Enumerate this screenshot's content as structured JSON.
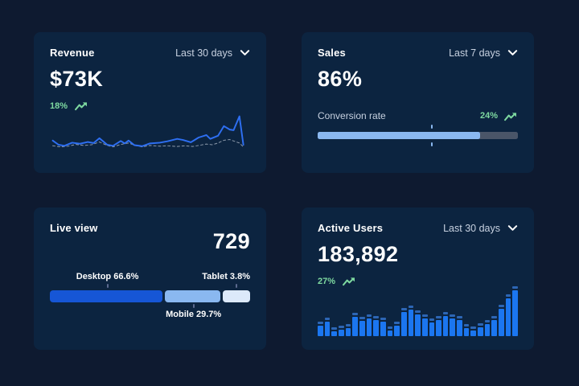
{
  "theme": {
    "page_bg": "#0e1a30",
    "card_bg": "#0c2440",
    "accent_green": "#7ed9a0",
    "line_blue": "#2e6ff2",
    "line_dash_gray": "#8e9bac",
    "bar_blue": "#1b76f0",
    "bar_cap_blue": "#2d66b5",
    "progress_fill": "#8ab8f0",
    "progress_track": "#4a5568",
    "desktop_blue": "#1656d6",
    "mobile_blue": "#8ab8f0",
    "tablet_blue": "#dce9fa",
    "tick_color": "#5c6a8f"
  },
  "cards": {
    "revenue": {
      "title": "Revenue",
      "range": "Last 30 days",
      "value": "$73K",
      "delta": "18%",
      "line_points": [
        [
          0,
          81
        ],
        [
          3,
          93
        ],
        [
          6,
          96
        ],
        [
          10,
          87
        ],
        [
          14,
          90
        ],
        [
          18,
          85
        ],
        [
          21,
          88
        ],
        [
          24,
          74
        ],
        [
          28,
          93
        ],
        [
          31,
          96
        ],
        [
          35,
          82
        ],
        [
          37,
          89
        ],
        [
          39,
          81
        ],
        [
          42,
          94
        ],
        [
          46,
          97
        ],
        [
          50,
          89
        ],
        [
          55,
          87
        ],
        [
          59,
          83
        ],
        [
          64,
          76
        ],
        [
          67,
          79
        ],
        [
          71,
          86
        ],
        [
          75,
          72
        ],
        [
          79,
          65
        ],
        [
          81,
          76
        ],
        [
          85,
          67
        ],
        [
          88,
          39
        ],
        [
          91,
          49
        ],
        [
          93,
          51
        ],
        [
          96,
          11
        ],
        [
          98,
          93
        ]
      ],
      "dash_points": [
        [
          0,
          96
        ],
        [
          4,
          99
        ],
        [
          8,
          97
        ],
        [
          12,
          92
        ],
        [
          16,
          95
        ],
        [
          20,
          93
        ],
        [
          24,
          85
        ],
        [
          28,
          95
        ],
        [
          31,
          99
        ],
        [
          35,
          92
        ],
        [
          39,
          88
        ],
        [
          43,
          96
        ],
        [
          46,
          99
        ],
        [
          50,
          95
        ],
        [
          55,
          97
        ],
        [
          59,
          96
        ],
        [
          64,
          98
        ],
        [
          68,
          96
        ],
        [
          72,
          98
        ],
        [
          75,
          95
        ],
        [
          79,
          91
        ],
        [
          82,
          93
        ],
        [
          85,
          88
        ],
        [
          88,
          80
        ],
        [
          91,
          78
        ],
        [
          93,
          82
        ],
        [
          96,
          88
        ],
        [
          98,
          99
        ]
      ]
    },
    "sales": {
      "title": "Sales",
      "range": "Last 7 days",
      "value": "86%",
      "metric_label": "Conversion rate",
      "delta": "24%",
      "progress_pct": 81,
      "marker_pct": 57
    },
    "live_view": {
      "title": "Live view",
      "value": "729",
      "segments": [
        {
          "name": "Desktop",
          "label": "Desktop 66.6%",
          "share_pct": 66.6,
          "width_pct": 57.5
        },
        {
          "name": "Mobile",
          "label": "Mobile 29.7%",
          "share_pct": 29.7,
          "width_pct": 28.5
        },
        {
          "name": "Tablet",
          "label": "Tablet 3.8%",
          "share_pct": 3.8,
          "width_pct": 14
        }
      ]
    },
    "active_users": {
      "title": "Active Users",
      "range": "Last 30 days",
      "value": "183,892",
      "delta": "27%",
      "bars": [
        29,
        37,
        17,
        21,
        24,
        46,
        38,
        43,
        40,
        37,
        19,
        29,
        57,
        62,
        52,
        44,
        35,
        40,
        48,
        44,
        40,
        24,
        19,
        25,
        32,
        40,
        63,
        84,
        100
      ]
    }
  },
  "chart_data": [
    {
      "type": "line",
      "title": "Revenue",
      "range": "Last 30 days",
      "kpi": "$73K",
      "change": "+18%",
      "legend_position": "none",
      "series": [
        {
          "name": "current",
          "values_relative": [
            19,
            7,
            4,
            13,
            10,
            15,
            12,
            26,
            7,
            4,
            18,
            11,
            19,
            6,
            3,
            11,
            13,
            17,
            24,
            21,
            14,
            28,
            35,
            24,
            33,
            61,
            51,
            49,
            89,
            7
          ]
        },
        {
          "name": "previous (dashed)",
          "values_relative": [
            4,
            1,
            3,
            8,
            5,
            7,
            15,
            5,
            1,
            8,
            12,
            4,
            1,
            5,
            3,
            4,
            2,
            4,
            2,
            5,
            9,
            7,
            12,
            20,
            22,
            18,
            12,
            1
          ]
        }
      ]
    },
    {
      "type": "bar",
      "title": "Sales conversion rate",
      "range": "Last 7 days",
      "kpi": "86%",
      "change": "+24%",
      "categories": [
        "Conversion rate"
      ],
      "values": [
        86
      ],
      "progress_fill_pct": 81,
      "marker_pct": 57
    },
    {
      "type": "bar",
      "title": "Live view device share",
      "kpi": "729",
      "categories": [
        "Desktop",
        "Mobile",
        "Tablet"
      ],
      "values": [
        66.6,
        29.7,
        3.8
      ]
    },
    {
      "type": "bar",
      "title": "Active Users",
      "range": "Last 30 days",
      "kpi": "183,892",
      "change": "+27%",
      "categories": [],
      "values_relative": [
        29,
        37,
        17,
        21,
        24,
        46,
        38,
        43,
        40,
        37,
        19,
        29,
        57,
        62,
        52,
        44,
        35,
        40,
        48,
        44,
        40,
        24,
        19,
        25,
        32,
        40,
        63,
        84,
        100
      ]
    }
  ]
}
